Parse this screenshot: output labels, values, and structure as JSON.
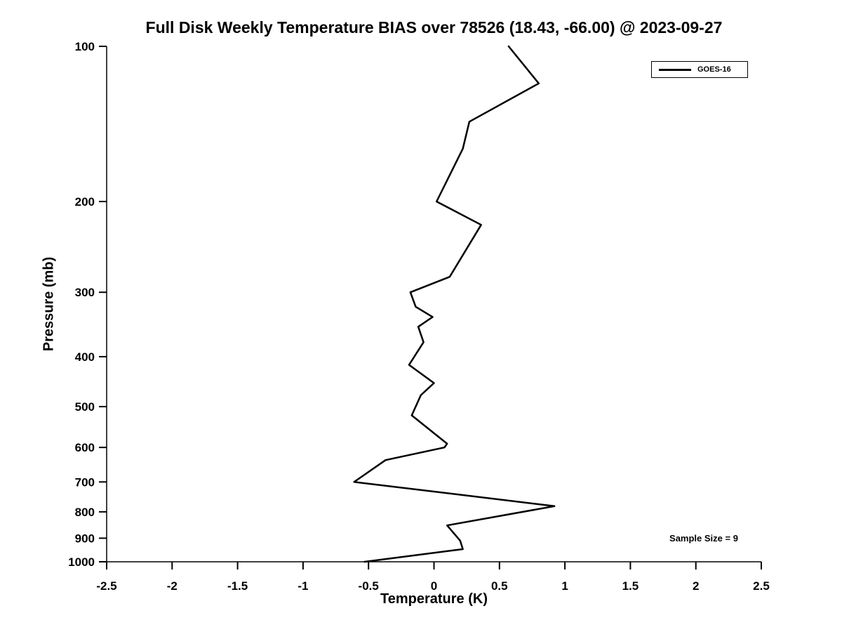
{
  "chart_data": {
    "type": "line",
    "title": "Full Disk Weekly Temperature BIAS over 78526 (18.43, -66.00) @ 2023-09-27",
    "xlabel": "Temperature (K)",
    "ylabel": "Pressure (mb)",
    "xlim": [
      -2.5,
      2.5
    ],
    "ylim": [
      100,
      1000
    ],
    "y_scale": "log",
    "y_direction": "inverted",
    "grid": false,
    "legend_position": "top-right",
    "x_tick_labels": [
      "-2.5",
      "-2",
      "-1.5",
      "-1",
      "-0.5",
      "0",
      "0.5",
      "1",
      "1.5",
      "2",
      "2.5"
    ],
    "y_ticks": [
      100,
      200,
      300,
      400,
      500,
      600,
      700,
      800,
      900,
      1000
    ],
    "annotations": [
      "Sample Size = 9"
    ],
    "sample_size": 9,
    "point_format": [
      "temperature_bias_K",
      "pressure_mb"
    ],
    "series": [
      {
        "name": "GOES-16",
        "color": "#000000",
        "line_width": 2.5,
        "points": [
          [
            0.57,
            100
          ],
          [
            0.8,
            118
          ],
          [
            0.27,
            140
          ],
          [
            0.22,
            158
          ],
          [
            0.02,
            200
          ],
          [
            0.36,
            222
          ],
          [
            0.12,
            280
          ],
          [
            -0.18,
            300
          ],
          [
            -0.14,
            320
          ],
          [
            -0.01,
            335
          ],
          [
            -0.12,
            350
          ],
          [
            -0.08,
            375
          ],
          [
            -0.19,
            415
          ],
          [
            0.0,
            450
          ],
          [
            -0.1,
            475
          ],
          [
            -0.17,
            520
          ],
          [
            0.1,
            590
          ],
          [
            0.08,
            600
          ],
          [
            -0.37,
            635
          ],
          [
            -0.61,
            700
          ],
          [
            0.92,
            780
          ],
          [
            0.1,
            850
          ],
          [
            0.2,
            910
          ],
          [
            0.22,
            945
          ],
          [
            -0.53,
            1000
          ]
        ]
      }
    ]
  },
  "colors": {
    "background": "#ffffff",
    "foreground": "#000000",
    "axis": "#000000"
  }
}
